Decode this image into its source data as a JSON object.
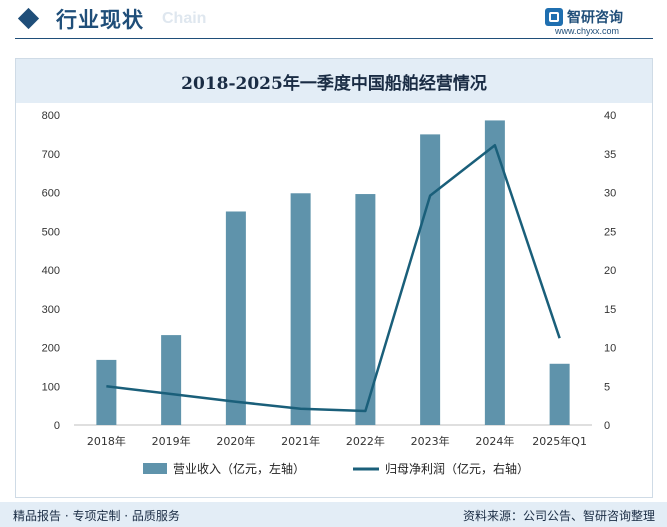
{
  "header": {
    "title": "行业现状",
    "ghost": "Chain",
    "brand_name": "智研咨询",
    "brand_url": "www.chyxx.com"
  },
  "chart_data": {
    "type": "bar",
    "title": "2018-2025年一季度中国船舶经营情况",
    "categories": [
      "2018年",
      "2019年",
      "2020年",
      "2021年",
      "2022年",
      "2023年",
      "2024年",
      "2025年Q1"
    ],
    "series": [
      {
        "name": "营业收入（亿元，左轴）",
        "type": "bar",
        "axis": "left",
        "color": "#5f93ab",
        "values": [
          168,
          232,
          551,
          598,
          596,
          750,
          786,
          158
        ]
      },
      {
        "name": "归母净利润（亿元，右轴）",
        "type": "line",
        "axis": "right",
        "color": "#1a5f7a",
        "values": [
          5.0,
          4.0,
          3.0,
          2.1,
          1.8,
          29.6,
          36.1,
          11.2
        ]
      }
    ],
    "y_left": {
      "min": 0,
      "max": 800,
      "ticks": [
        0,
        100,
        200,
        300,
        400,
        500,
        600,
        700,
        800
      ]
    },
    "y_right": {
      "min": 0,
      "max": 40,
      "ticks": [
        0,
        5,
        10,
        15,
        20,
        25,
        30,
        35,
        40
      ]
    },
    "grid": false,
    "legend_position": "bottom"
  },
  "footer": {
    "left": "精品报告 · 专项定制 · 品质服务",
    "right": "资料来源：公司公告、智研咨询整理"
  }
}
